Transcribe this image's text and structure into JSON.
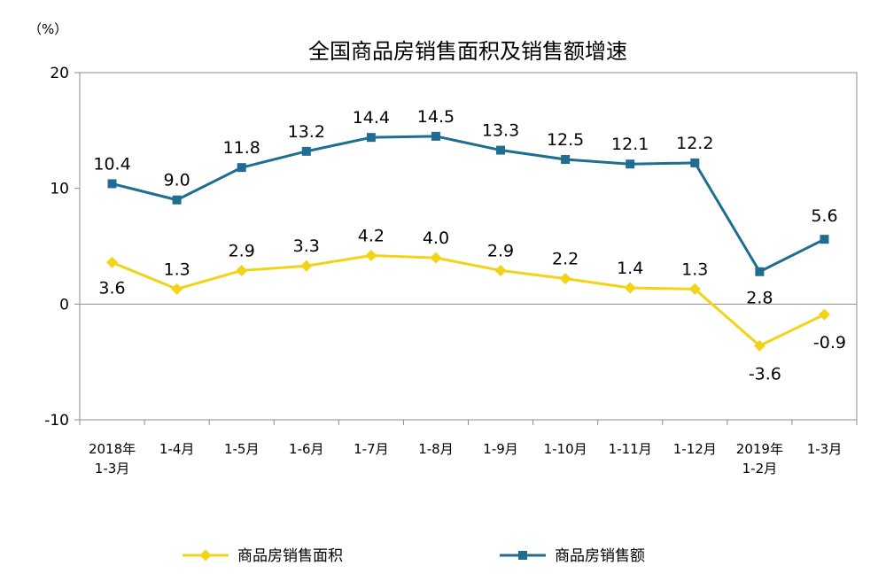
{
  "chart_data": {
    "type": "line",
    "title": "全国商品房销售面积及销售额增速",
    "unit_label": "（%）",
    "categories": [
      [
        "2018年",
        "1-3月"
      ],
      [
        "1-4月"
      ],
      [
        "1-5月"
      ],
      [
        "1-6月"
      ],
      [
        "1-7月"
      ],
      [
        "1-8月"
      ],
      [
        "1-9月"
      ],
      [
        "1-10月"
      ],
      [
        "1-11月"
      ],
      [
        "1-12月"
      ],
      [
        "2019年",
        "1-2月"
      ],
      [
        "1-3月"
      ]
    ],
    "ylim": [
      -10,
      20
    ],
    "yticks": [
      "20",
      "10",
      "0",
      "-10"
    ],
    "series": [
      {
        "name": "商品房销售面积",
        "color": "#f2d318",
        "marker": "diamond",
        "values": [
          3.6,
          1.3,
          2.9,
          3.3,
          4.2,
          4.0,
          2.9,
          2.2,
          1.4,
          1.3,
          -3.6,
          -0.9
        ],
        "labels": [
          "3.6",
          "1.3",
          "2.9",
          "3.3",
          "4.2",
          "4.0",
          "2.9",
          "2.2",
          "1.4",
          "1.3",
          "-3.6",
          "-0.9"
        ]
      },
      {
        "name": "商品房销售额",
        "color": "#1f6e91",
        "marker": "square",
        "values": [
          10.4,
          9.0,
          11.8,
          13.2,
          14.4,
          14.5,
          13.3,
          12.5,
          12.1,
          12.2,
          2.8,
          5.6
        ],
        "labels": [
          "10.4",
          "9.0",
          "11.8",
          "13.2",
          "14.4",
          "14.5",
          "13.3",
          "12.5",
          "12.1",
          "12.2",
          "2.8",
          "5.6"
        ]
      }
    ],
    "grid": false,
    "legend_position": "bottom"
  }
}
